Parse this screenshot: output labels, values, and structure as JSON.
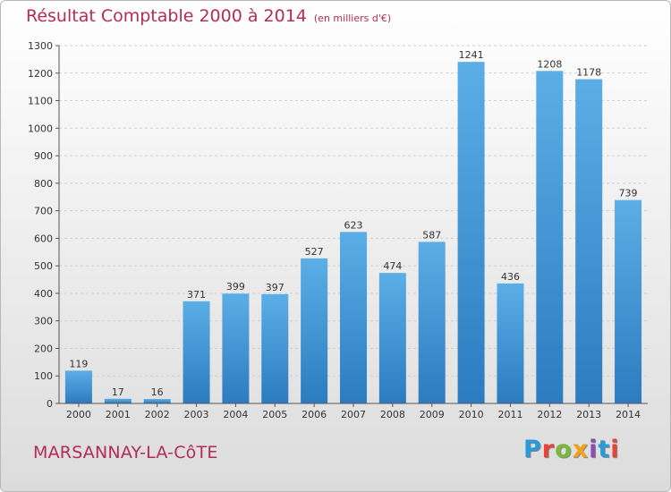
{
  "header": {
    "title": "Résultat Comptable 2000 à 2014",
    "subtitle": "(en milliers d'€)"
  },
  "footer": {
    "city": "MARSANNAY-LA-CôTE",
    "logo_letters": [
      "P",
      "r",
      "o",
      "x",
      "i",
      "t",
      "i"
    ],
    "logo_colors": [
      "#2a9ad8",
      "#e8423a",
      "#7ab83a",
      "#f2a31a",
      "#8a4fb0",
      "#2a9ad8",
      "#e8423a"
    ]
  },
  "colors": {
    "title": "#b52a5a",
    "bar_light": "#5baee6",
    "bar_dark": "#2b7cc0",
    "grid": "#d0d0d0",
    "axis": "#555555"
  },
  "chart_data": {
    "type": "bar",
    "categories": [
      "2000",
      "2001",
      "2002",
      "2003",
      "2004",
      "2005",
      "2006",
      "2007",
      "2008",
      "2009",
      "2010",
      "2011",
      "2012",
      "2013",
      "2014"
    ],
    "values": [
      119,
      17,
      16,
      371,
      399,
      397,
      527,
      623,
      474,
      587,
      1241,
      436,
      1208,
      1178,
      739
    ],
    "data_labels": [
      "119",
      "17",
      "16",
      "371",
      "399",
      "397",
      "527",
      "623",
      "474",
      "587",
      "1241",
      "436",
      "1208",
      "1178",
      "739"
    ],
    "title": "Résultat Comptable 2000 à 2014",
    "xlabel": "",
    "ylabel": "",
    "ylim": [
      0,
      1300
    ],
    "yticks": [
      0,
      100,
      200,
      300,
      400,
      500,
      600,
      700,
      800,
      900,
      1000,
      1100,
      1200,
      1300
    ],
    "grid": true,
    "legend": "none"
  }
}
